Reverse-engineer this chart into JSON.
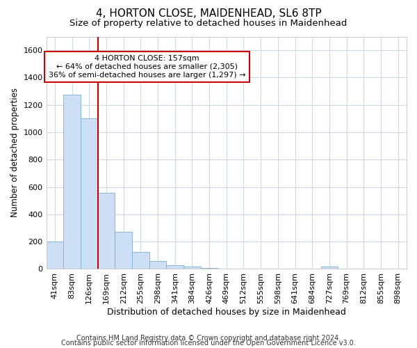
{
  "title1": "4, HORTON CLOSE, MAIDENHEAD, SL6 8TP",
  "title2": "Size of property relative to detached houses in Maidenhead",
  "xlabel": "Distribution of detached houses by size in Maidenhead",
  "ylabel": "Number of detached properties",
  "categories": [
    "41sqm",
    "83sqm",
    "126sqm",
    "169sqm",
    "212sqm",
    "255sqm",
    "298sqm",
    "341sqm",
    "384sqm",
    "426sqm",
    "469sqm",
    "512sqm",
    "555sqm",
    "598sqm",
    "641sqm",
    "684sqm",
    "727sqm",
    "769sqm",
    "812sqm",
    "855sqm",
    "898sqm"
  ],
  "values": [
    200,
    1275,
    1100,
    555,
    270,
    125,
    60,
    30,
    18,
    5,
    3,
    3,
    3,
    3,
    0,
    0,
    18,
    0,
    0,
    0,
    0
  ],
  "bar_color": "#ccdff5",
  "bar_edge_color": "#7ab0d8",
  "grid_color": "#d0d8e8",
  "background_color": "#ffffff",
  "plot_bg_color": "#ffffff",
  "vline_color": "#cc0000",
  "annotation_text": "4 HORTON CLOSE: 157sqm\n← 64% of detached houses are smaller (2,305)\n36% of semi-detached houses are larger (1,297) →",
  "annotation_box_color": "#ffffff",
  "annotation_box_edge": "#cc0000",
  "ylim": [
    0,
    1700
  ],
  "yticks": [
    0,
    200,
    400,
    600,
    800,
    1000,
    1200,
    1400,
    1600
  ],
  "footer1": "Contains HM Land Registry data © Crown copyright and database right 2024.",
  "footer2": "Contains public sector information licensed under the Open Government Licence v3.0.",
  "title_fontsize": 11,
  "subtitle_fontsize": 9.5,
  "xlabel_fontsize": 9,
  "ylabel_fontsize": 8.5,
  "tick_fontsize": 8,
  "footer_fontsize": 7,
  "annot_fontsize": 8
}
